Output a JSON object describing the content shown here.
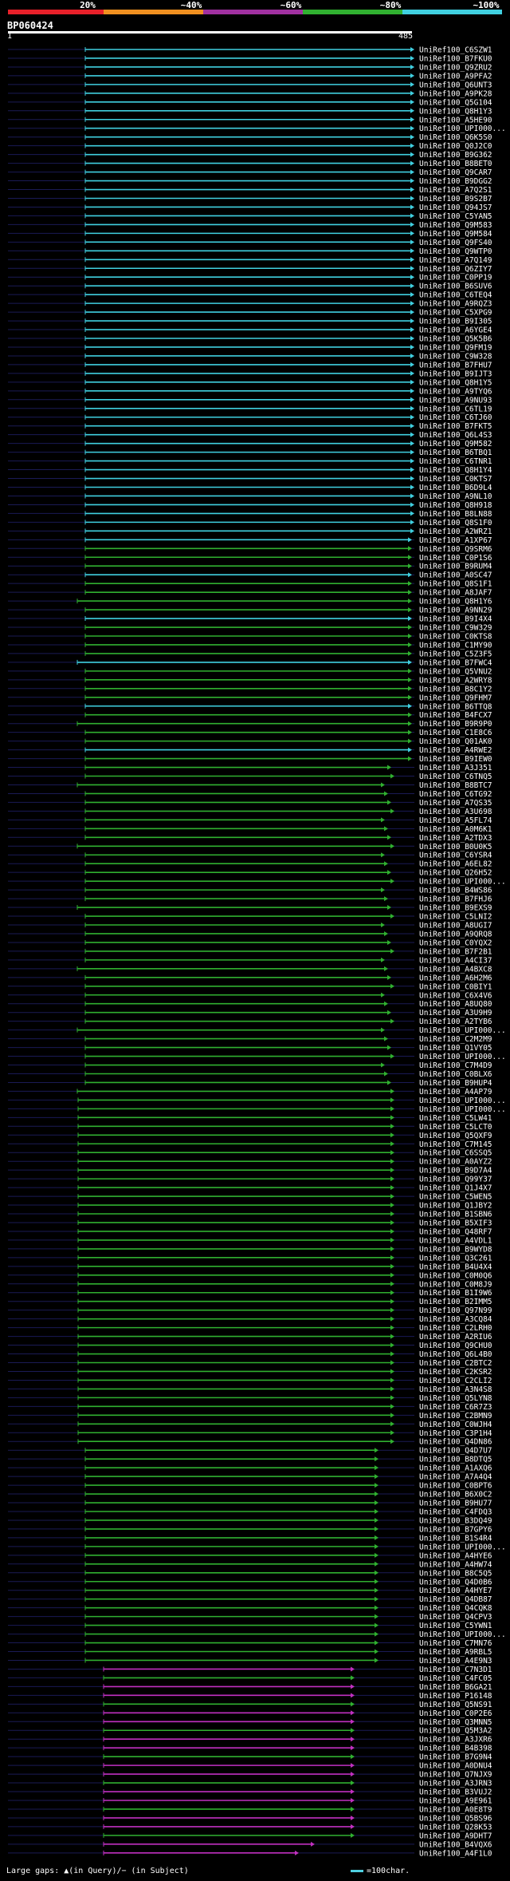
{
  "legend": {
    "labels": [
      "20%",
      "~40%",
      "~60%",
      "~80%",
      "~100%"
    ],
    "colors": [
      "#e8202a",
      "#f09020",
      "#a030a0",
      "#30b030",
      "#40d0e0"
    ]
  },
  "query": {
    "id": "BP060424",
    "start": "1",
    "end": "485"
  },
  "footer": {
    "gaps": "Large gaps: ▲(in Query)/− (in Subject)",
    "scale": "=100char."
  },
  "hits": [
    "UniRef100_C6SZW1",
    "UniRef100_B7FKU0",
    "UniRef100_Q9ZRU2",
    "UniRef100_A9PFA2",
    "UniRef100_Q6UNT3",
    "UniRef100_A9PK28",
    "UniRef100_Q5G104",
    "UniRef100_Q8H1Y3",
    "UniRef100_A5HE90",
    "UniRef100_UPI000...",
    "UniRef100_Q6K5S0",
    "UniRef100_Q0J2C0",
    "UniRef100_B9G362",
    "UniRef100_B8BET0",
    "UniRef100_Q9CAR7",
    "UniRef100_B9DGG2",
    "UniRef100_A7Q2S1",
    "UniRef100_B9S2B7",
    "UniRef100_Q94JS7",
    "UniRef100_C5YAN5",
    "UniRef100_Q9M583",
    "UniRef100_Q9M584",
    "UniRef100_Q9FS40",
    "UniRef100_Q9WTP0",
    "UniRef100_A7Q149",
    "UniRef100_Q6ZIY7",
    "UniRef100_C0PP19",
    "UniRef100_B6SUV6",
    "UniRef100_C6TEQ4",
    "UniRef100_A9RQZ3",
    "UniRef100_C5XPG9",
    "UniRef100_B9I305",
    "UniRef100_A6YGE4",
    "UniRef100_Q5K5B6",
    "UniRef100_Q9FM19",
    "UniRef100_C9W328",
    "UniRef100_B7FHU7",
    "UniRef100_B9IJT3",
    "UniRef100_Q8H1Y5",
    "UniRef100_A9TYQ6",
    "UniRef100_A9NU93",
    "UniRef100_C6TL19",
    "UniRef100_C6TJ60",
    "UniRef100_B7FKT5",
    "UniRef100_Q6L4S3",
    "UniRef100_Q9M582",
    "UniRef100_B6TBQ1",
    "UniRef100_C6TNR1",
    "UniRef100_Q8H1Y4",
    "UniRef100_C0KTS7",
    "UniRef100_B6D9L4",
    "UniRef100_A9NL10",
    "UniRef100_Q8H918",
    "UniRef100_B8LN88",
    "UniRef100_Q8S1F0",
    "UniRef100_A2WRZ1",
    "UniRef100_A1XP67",
    "UniRef100_Q9SRM6",
    "UniRef100_C0P1S6",
    "UniRef100_B9RUM4",
    "UniRef100_A0SC47",
    "UniRef100_Q8S1F1",
    "UniRef100_A8JAF7",
    "UniRef100_Q8H1Y6",
    "UniRef100_A9NN29",
    "UniRef100_B9I4X4",
    "UniRef100_C9W329",
    "UniRef100_C0KTS8",
    "UniRef100_C1MY90",
    "UniRef100_C5Z3F5",
    "UniRef100_B7FWC4",
    "UniRef100_Q5VNU2",
    "UniRef100_A2WRY8",
    "UniRef100_B8C1Y2",
    "UniRef100_Q9FHM7",
    "UniRef100_B6TTQ8",
    "UniRef100_B4FCX7",
    "UniRef100_B9R9P0",
    "UniRef100_C1E8C6",
    "UniRef100_Q01AK0",
    "UniRef100_A4RWE2",
    "UniRef100_B9IEW0",
    "UniRef100_A3J351",
    "UniRef100_C6TNQ5",
    "UniRef100_B8BTC7",
    "UniRef100_C6TG92",
    "UniRef100_A7QS35",
    "UniRef100_A3U698",
    "UniRef100_A5FL74",
    "UniRef100_A0M6K1",
    "UniRef100_A2TDX3",
    "UniRef100_B0U0K5",
    "UniRef100_C6YSR4",
    "UniRef100_A6EL82",
    "UniRef100_Q26H52",
    "UniRef100_UPI000...",
    "UniRef100_B4WS86",
    "UniRef100_B7FHJ6",
    "UniRef100_B9EXS9",
    "UniRef100_C5LNI2",
    "UniRef100_A8UGI7",
    "UniRef100_A9QRQ8",
    "UniRef100_C0YQX2",
    "UniRef100_B7F2B1",
    "UniRef100_A4CI37",
    "UniRef100_A4BXC8",
    "UniRef100_A6H2M6",
    "UniRef100_C0BIY1",
    "UniRef100_C6X4V6",
    "UniRef100_A8UQ80",
    "UniRef100_A3U9H9",
    "UniRef100_A2TYB6",
    "UniRef100_UPI000...",
    "UniRef100_C2M2M9",
    "UniRef100_Q1VY05",
    "UniRef100_UPI000...",
    "UniRef100_C7M4D9",
    "UniRef100_C0BLX6",
    "UniRef100_B9HUP4",
    "UniRef100_A4AP79",
    "UniRef100_UPI000...",
    "UniRef100_UPI000...",
    "UniRef100_C5LW41",
    "UniRef100_C5LCT0",
    "UniRef100_Q5QXF9",
    "UniRef100_C7M145",
    "UniRef100_C6SSQ5",
    "UniRef100_A0AYZ2",
    "UniRef100_B9D7A4",
    "UniRef100_Q99Y37",
    "UniRef100_Q1J4X7",
    "UniRef100_C5WEN5",
    "UniRef100_Q1JBY2",
    "UniRef100_B1SBN6",
    "UniRef100_B5XIF3",
    "UniRef100_Q48RF7",
    "UniRef100_A4VDL1",
    "UniRef100_B9WYD8",
    "UniRef100_Q3C261",
    "UniRef100_B4U4X4",
    "UniRef100_C0M0Q6",
    "UniRef100_C0M8J9",
    "UniRef100_B1I9W6",
    "UniRef100_B2IMM5",
    "UniRef100_Q97N99",
    "UniRef100_A3CQ84",
    "UniRef100_C2LRH0",
    "UniRef100_A2RIU6",
    "UniRef100_Q9CHU0",
    "UniRef100_Q6L4B0",
    "UniRef100_C2BTC2",
    "UniRef100_C2KSR2",
    "UniRef100_C2CLI2",
    "UniRef100_A3N4S8",
    "UniRef100_Q5LYN8",
    "UniRef100_C6R7Z3",
    "UniRef100_C2BMN9",
    "UniRef100_C0WJH4",
    "UniRef100_C3P1H4",
    "UniRef100_Q4DN86",
    "UniRef100_Q4D7U7",
    "UniRef100_B8DTQ5",
    "UniRef100_A1AXQ6",
    "UniRef100_A7A4Q4",
    "UniRef100_C0BPT6",
    "UniRef100_B6X0C2",
    "UniRef100_B9HU77",
    "UniRef100_C4FDQ3",
    "UniRef100_B3DQ49",
    "UniRef100_B7GPY6",
    "UniRef100_B1S4R4",
    "UniRef100_UPI000...",
    "UniRef100_A4HYE6",
    "UniRef100_A4HW74",
    "UniRef100_B8C5Q5",
    "UniRef100_Q4D0B6",
    "UniRef100_A4HYE7",
    "UniRef100_Q4DB87",
    "UniRef100_Q4CQK8",
    "UniRef100_Q4CPV3",
    "UniRef100_C5YWN1",
    "UniRef100_UPI000...",
    "UniRef100_C7MN76",
    "UniRef100_A9RBL5",
    "UniRef100_A4E9N3",
    "UniRef100_C7N3D1",
    "UniRef100_C4FC05",
    "UniRef100_B6GA21",
    "UniRef100_P16148",
    "UniRef100_Q5NS91",
    "UniRef100_C0P2E6",
    "UniRef100_Q3MNN5",
    "UniRef100_Q5M3A2",
    "UniRef100_A3JXR6",
    "UniRef100_B4B398",
    "UniRef100_B7G9N4",
    "UniRef100_A0DNU4",
    "UniRef100_Q7NJX9",
    "UniRef100_A3JRN3",
    "UniRef100_B3VUJ2",
    "UniRef100_A9E961",
    "UniRef100_A0E8T9",
    "UniRef100_Q5BS96",
    "UniRef100_Q28K53",
    "UniRef100_A9DHT7",
    "UniRef100_B4VQX6",
    "UniRef100_A4F1L0"
  ]
}
